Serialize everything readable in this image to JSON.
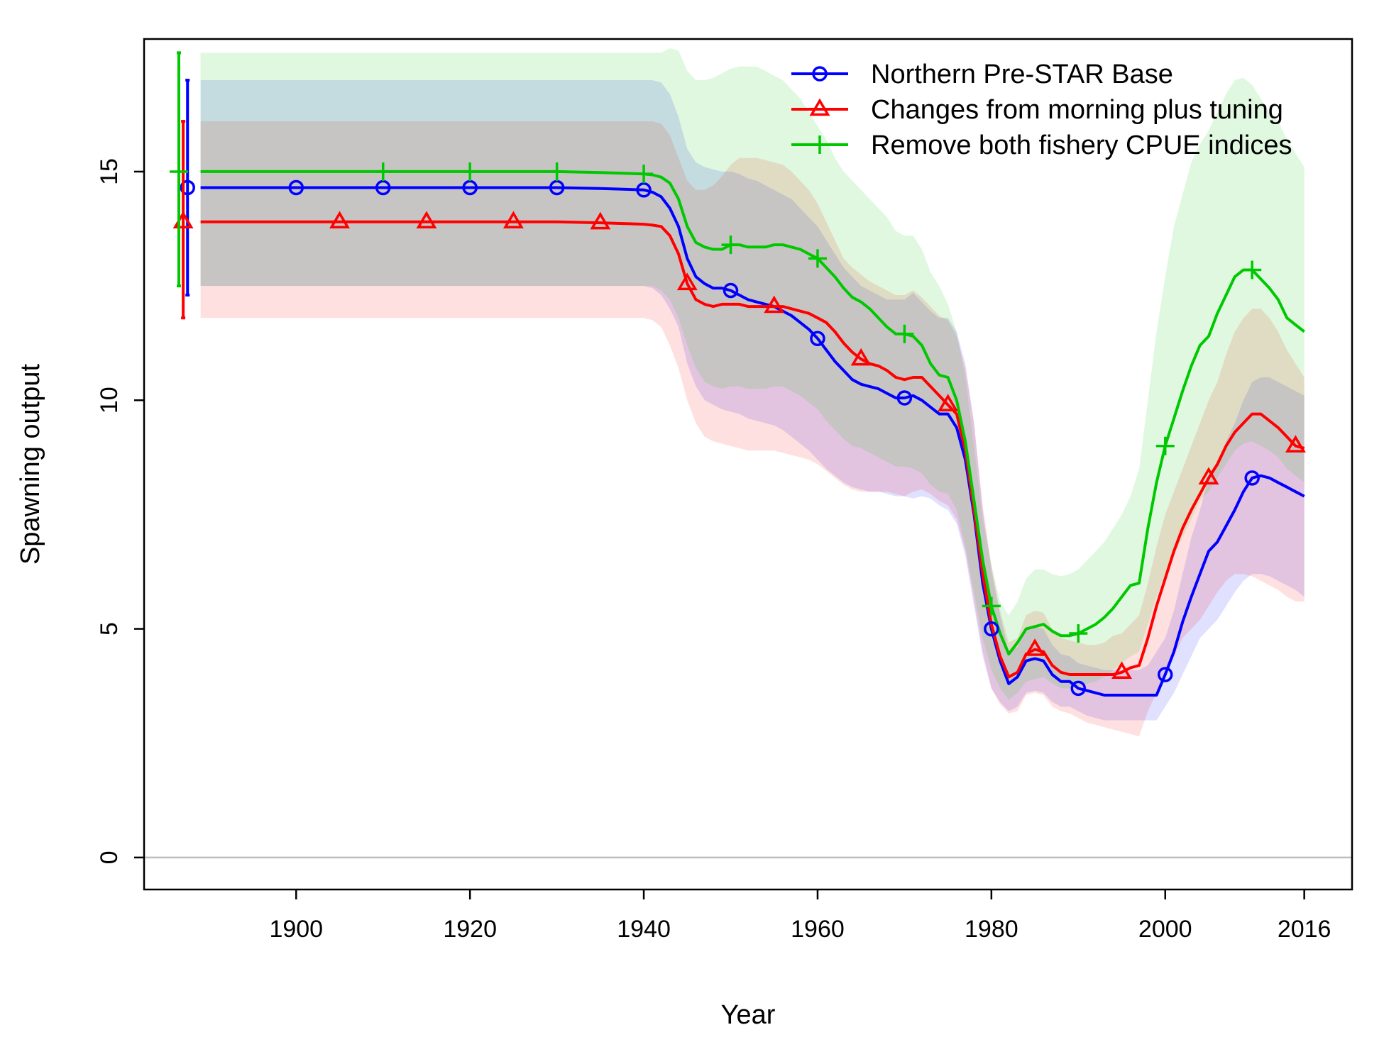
{
  "chart_data": {
    "type": "line",
    "title": "",
    "xlabel": "Year",
    "ylabel": "Spawning output",
    "xlim": [
      1882.5,
      2021.5
    ],
    "ylim": [
      -0.7,
      17.9
    ],
    "xticks": [
      1900,
      1920,
      1940,
      1960,
      1980,
      2000,
      2016
    ],
    "yticks": [
      0,
      5,
      10,
      15
    ],
    "reference_line_y": 0,
    "legend_position": "top-right",
    "x": [
      1889,
      1895,
      1900,
      1905,
      1910,
      1915,
      1920,
      1925,
      1930,
      1935,
      1940,
      1941,
      1942,
      1943,
      1944,
      1945,
      1946,
      1947,
      1948,
      1949,
      1950,
      1951,
      1952,
      1953,
      1954,
      1955,
      1956,
      1957,
      1958,
      1959,
      1960,
      1961,
      1962,
      1963,
      1964,
      1965,
      1966,
      1967,
      1968,
      1969,
      1970,
      1971,
      1972,
      1973,
      1974,
      1975,
      1976,
      1977,
      1978,
      1979,
      1980,
      1981,
      1982,
      1983,
      1984,
      1985,
      1986,
      1987,
      1988,
      1989,
      1990,
      1991,
      1992,
      1993,
      1994,
      1995,
      1996,
      1997,
      1998,
      1999,
      2000,
      2001,
      2002,
      2003,
      2004,
      2005,
      2006,
      2007,
      2008,
      2009,
      2010,
      2011,
      2012,
      2013,
      2014,
      2015,
      2016
    ],
    "series": [
      {
        "name": "Northern Pre-STAR Base",
        "color": "#0000ff",
        "marker": "circle",
        "initial_point": {
          "x": 1887.5,
          "y": 14.65,
          "lower": 12.3,
          "upper": 17.0
        },
        "values": [
          14.65,
          14.65,
          14.65,
          14.65,
          14.65,
          14.65,
          14.65,
          14.65,
          14.65,
          14.63,
          14.6,
          14.55,
          14.45,
          14.2,
          13.8,
          13.1,
          12.7,
          12.55,
          12.45,
          12.45,
          12.4,
          12.3,
          12.2,
          12.15,
          12.1,
          12.05,
          11.95,
          11.85,
          11.7,
          11.55,
          11.35,
          11.1,
          10.85,
          10.65,
          10.45,
          10.35,
          10.3,
          10.25,
          10.15,
          10.05,
          10.05,
          10.1,
          10.0,
          9.85,
          9.7,
          9.7,
          9.4,
          8.7,
          7.5,
          6.0,
          5.0,
          4.3,
          3.8,
          3.95,
          4.3,
          4.35,
          4.3,
          4.0,
          3.85,
          3.85,
          3.7,
          3.65,
          3.6,
          3.55,
          3.55,
          3.55,
          3.55,
          3.55,
          3.55,
          3.55,
          4.0,
          4.5,
          5.15,
          5.7,
          6.2,
          6.7,
          6.9,
          7.25,
          7.6,
          8.0,
          8.3,
          8.35,
          8.3,
          8.2,
          8.1,
          8.0,
          7.9
        ],
        "lower": [
          12.5,
          12.5,
          12.5,
          12.5,
          12.5,
          12.5,
          12.5,
          12.5,
          12.5,
          12.5,
          12.5,
          12.45,
          12.3,
          12.0,
          11.6,
          10.8,
          10.3,
          10.0,
          9.9,
          9.8,
          9.75,
          9.7,
          9.6,
          9.55,
          9.5,
          9.45,
          9.35,
          9.2,
          9.05,
          8.9,
          8.7,
          8.5,
          8.35,
          8.2,
          8.1,
          8.05,
          8.0,
          8.0,
          7.95,
          7.9,
          7.9,
          7.85,
          7.9,
          7.85,
          7.7,
          7.6,
          7.3,
          6.6,
          5.5,
          4.4,
          3.7,
          3.4,
          3.2,
          3.3,
          3.6,
          3.65,
          3.6,
          3.4,
          3.3,
          3.3,
          3.2,
          3.1,
          3.05,
          3.0,
          3.0,
          3.0,
          3.0,
          3.0,
          3.0,
          3.0,
          3.3,
          3.6,
          4.0,
          4.4,
          4.8,
          5.0,
          5.2,
          5.5,
          5.8,
          6.05,
          6.2,
          6.2,
          6.15,
          6.05,
          5.95,
          5.85,
          5.7
        ],
        "upper": [
          17.0,
          17.0,
          17.0,
          17.0,
          17.0,
          17.0,
          17.0,
          17.0,
          17.0,
          17.0,
          17.0,
          17.0,
          16.95,
          16.7,
          16.2,
          15.5,
          15.2,
          15.1,
          15.05,
          15.0,
          15.0,
          14.95,
          14.85,
          14.8,
          14.7,
          14.6,
          14.5,
          14.4,
          14.2,
          14.0,
          13.8,
          13.5,
          13.2,
          12.9,
          12.7,
          12.5,
          12.4,
          12.3,
          12.2,
          12.2,
          12.2,
          12.35,
          12.15,
          11.95,
          11.8,
          11.8,
          11.5,
          10.8,
          9.5,
          7.6,
          6.3,
          5.3,
          4.5,
          4.6,
          5.0,
          5.05,
          5.0,
          4.65,
          4.45,
          4.4,
          4.25,
          4.2,
          4.15,
          4.1,
          4.1,
          4.1,
          4.1,
          4.1,
          4.2,
          4.5,
          4.8,
          5.4,
          6.2,
          7.0,
          7.6,
          8.3,
          8.6,
          9.1,
          9.5,
          10.0,
          10.4,
          10.5,
          10.5,
          10.4,
          10.3,
          10.2,
          10.1
        ]
      },
      {
        "name": "Changes from morning plus tuning",
        "color": "#ff0000",
        "marker": "triangle",
        "initial_point": {
          "x": 1887.0,
          "y": 13.9,
          "lower": 11.8,
          "upper": 16.1
        },
        "values": [
          13.9,
          13.9,
          13.9,
          13.9,
          13.9,
          13.9,
          13.9,
          13.9,
          13.9,
          13.88,
          13.85,
          13.83,
          13.8,
          13.6,
          13.2,
          12.55,
          12.2,
          12.1,
          12.05,
          12.1,
          12.1,
          12.1,
          12.05,
          12.05,
          12.05,
          12.05,
          12.05,
          12.0,
          11.95,
          11.9,
          11.8,
          11.7,
          11.5,
          11.25,
          11.05,
          10.9,
          10.8,
          10.75,
          10.65,
          10.5,
          10.45,
          10.5,
          10.5,
          10.3,
          10.1,
          9.9,
          9.7,
          8.9,
          7.6,
          6.2,
          5.1,
          4.4,
          3.95,
          4.05,
          4.45,
          4.55,
          4.5,
          4.2,
          4.05,
          4.0,
          4.0,
          4.0,
          4.0,
          4.0,
          4.0,
          4.05,
          4.15,
          4.2,
          4.8,
          5.5,
          6.1,
          6.7,
          7.2,
          7.6,
          7.95,
          8.3,
          8.6,
          9.0,
          9.3,
          9.5,
          9.7,
          9.7,
          9.55,
          9.4,
          9.2,
          9.0,
          8.95
        ],
        "lower": [
          11.8,
          11.8,
          11.8,
          11.8,
          11.8,
          11.8,
          11.8,
          11.8,
          11.8,
          11.8,
          11.8,
          11.75,
          11.6,
          11.2,
          10.7,
          10.0,
          9.5,
          9.2,
          9.1,
          9.05,
          9.0,
          8.95,
          8.9,
          8.9,
          8.9,
          8.9,
          8.85,
          8.8,
          8.75,
          8.7,
          8.6,
          8.45,
          8.3,
          8.15,
          8.05,
          8.0,
          8.0,
          8.0,
          8.0,
          7.95,
          7.9,
          8.0,
          8.05,
          7.95,
          7.8,
          7.7,
          7.4,
          6.7,
          5.6,
          4.5,
          3.7,
          3.35,
          3.15,
          3.2,
          3.55,
          3.6,
          3.55,
          3.3,
          3.2,
          3.15,
          3.05,
          2.95,
          2.9,
          2.85,
          2.8,
          2.75,
          2.7,
          2.65,
          3.2,
          3.6,
          4.0,
          4.4,
          4.8,
          5.0,
          5.2,
          5.5,
          5.8,
          6.05,
          6.2,
          6.2,
          6.15,
          6.05,
          5.95,
          5.85,
          5.7,
          5.6,
          5.6
        ],
        "upper": [
          16.1,
          16.1,
          16.1,
          16.1,
          16.1,
          16.1,
          16.1,
          16.1,
          16.1,
          16.1,
          16.1,
          16.1,
          16.05,
          15.8,
          15.3,
          14.8,
          14.6,
          14.6,
          14.7,
          14.9,
          15.15,
          15.3,
          15.3,
          15.3,
          15.25,
          15.2,
          15.15,
          15.0,
          14.8,
          14.6,
          14.3,
          13.9,
          13.5,
          13.1,
          12.9,
          12.75,
          12.6,
          12.5,
          12.4,
          12.3,
          12.3,
          12.4,
          12.25,
          12.05,
          11.85,
          11.75,
          11.4,
          10.7,
          9.5,
          7.7,
          6.4,
          5.4,
          4.7,
          4.8,
          5.3,
          5.4,
          5.35,
          5.0,
          4.8,
          4.75,
          4.7,
          4.65,
          4.65,
          4.7,
          4.85,
          4.9,
          5.1,
          5.3,
          6.0,
          6.8,
          7.5,
          8.0,
          8.5,
          9.0,
          9.5,
          10.0,
          10.4,
          11.0,
          11.5,
          11.8,
          12.0,
          12.0,
          11.8,
          11.5,
          11.1,
          10.8,
          10.5
        ]
      },
      {
        "name": "Remove both fishery CPUE indices",
        "color": "#00c800",
        "marker": "plus",
        "initial_point": {
          "x": 1886.5,
          "y": 15.0,
          "lower": 12.5,
          "upper": 17.6
        },
        "values": [
          15.0,
          15.0,
          15.0,
          15.0,
          15.0,
          15.0,
          15.0,
          15.0,
          15.0,
          14.98,
          14.95,
          14.93,
          14.88,
          14.75,
          14.4,
          13.8,
          13.45,
          13.35,
          13.3,
          13.3,
          13.4,
          13.4,
          13.35,
          13.35,
          13.35,
          13.4,
          13.4,
          13.35,
          13.3,
          13.2,
          13.1,
          12.9,
          12.7,
          12.45,
          12.25,
          12.15,
          12.0,
          11.8,
          11.6,
          11.45,
          11.45,
          11.4,
          11.2,
          10.8,
          10.55,
          10.5,
          10.0,
          9.1,
          7.8,
          6.5,
          5.5,
          4.9,
          4.45,
          4.7,
          5.0,
          5.05,
          5.1,
          4.95,
          4.85,
          4.85,
          4.9,
          5.0,
          5.1,
          5.25,
          5.45,
          5.7,
          5.95,
          6.0,
          7.2,
          8.2,
          9.0,
          9.6,
          10.2,
          10.75,
          11.2,
          11.4,
          11.9,
          12.3,
          12.7,
          12.85,
          12.85,
          12.65,
          12.45,
          12.2,
          11.8,
          11.65,
          11.5
        ],
        "lower": [
          12.5,
          12.5,
          12.5,
          12.5,
          12.5,
          12.5,
          12.5,
          12.5,
          12.5,
          12.5,
          12.5,
          12.5,
          12.4,
          12.2,
          11.8,
          11.2,
          10.7,
          10.4,
          10.3,
          10.25,
          10.3,
          10.3,
          10.25,
          10.25,
          10.25,
          10.3,
          10.3,
          10.2,
          10.1,
          9.95,
          9.8,
          9.55,
          9.35,
          9.15,
          9.0,
          8.95,
          8.85,
          8.75,
          8.65,
          8.55,
          8.55,
          8.5,
          8.4,
          8.15,
          8.0,
          7.95,
          7.6,
          6.8,
          5.8,
          4.8,
          4.1,
          3.7,
          3.45,
          3.6,
          3.85,
          3.9,
          3.95,
          3.8,
          3.7,
          3.7,
          3.75,
          3.8,
          3.85,
          3.95,
          4.1,
          4.25,
          4.4,
          4.5,
          5.1,
          5.7,
          6.2,
          6.6,
          7.0,
          7.4,
          7.8,
          8.0,
          8.3,
          8.6,
          8.9,
          9.05,
          9.1,
          9.0,
          8.9,
          8.75,
          8.5,
          8.35,
          8.2
        ],
        "upper": [
          17.6,
          17.6,
          17.6,
          17.6,
          17.6,
          17.6,
          17.6,
          17.6,
          17.6,
          17.6,
          17.6,
          17.6,
          17.6,
          17.7,
          17.65,
          17.2,
          17.0,
          17.0,
          17.05,
          17.15,
          17.25,
          17.3,
          17.3,
          17.3,
          17.2,
          17.1,
          17.0,
          16.8,
          16.6,
          16.3,
          16.0,
          15.7,
          15.3,
          15.0,
          14.8,
          14.6,
          14.4,
          14.2,
          14.0,
          13.7,
          13.6,
          13.6,
          13.3,
          12.8,
          12.5,
          12.1,
          11.5,
          10.5,
          9.0,
          7.4,
          6.4,
          5.6,
          5.3,
          5.6,
          6.1,
          6.3,
          6.3,
          6.2,
          6.15,
          6.2,
          6.3,
          6.5,
          6.7,
          6.9,
          7.2,
          7.5,
          7.9,
          8.5,
          10.0,
          11.5,
          12.7,
          13.8,
          14.5,
          15.2,
          15.6,
          15.9,
          16.3,
          16.7,
          17.0,
          17.05,
          16.9,
          16.6,
          16.3,
          16.1,
          15.7,
          15.4,
          15.1
        ]
      }
    ]
  }
}
